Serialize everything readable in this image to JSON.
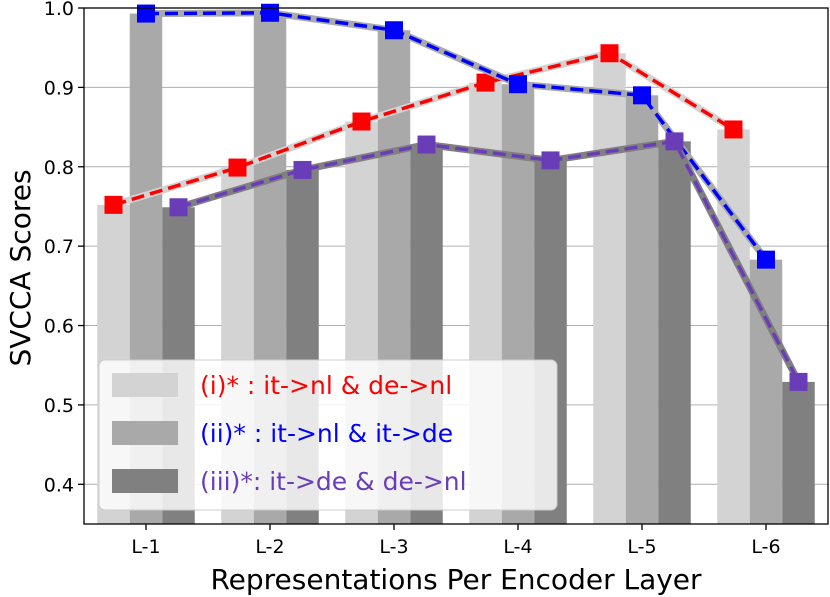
{
  "chart_data": {
    "type": "bar",
    "xlabel": "Representations Per Encoder Layer",
    "ylabel": "SVCCA Scores",
    "categories": [
      "L-1",
      "L-2",
      "L-3",
      "L-4",
      "L-5",
      "L-6"
    ],
    "ylim": [
      0.35,
      1.0
    ],
    "yticks": [
      "0.4",
      "0.5",
      "0.6",
      "0.7",
      "0.8",
      "0.9",
      "1.0"
    ],
    "grid": true,
    "legend_position": "lower-left",
    "series": [
      {
        "name": "(i)* : it->nl & de->nl",
        "values": [
          0.752,
          0.799,
          0.857,
          0.906,
          0.943,
          0.847
        ],
        "bar_color": "#d3d3d3",
        "line_color": "#ff0000"
      },
      {
        "name": "(ii)* : it->nl & it->de",
        "values": [
          0.993,
          0.994,
          0.972,
          0.904,
          0.89,
          0.683
        ],
        "bar_color": "#a9a9a9",
        "line_color": "#0000ff"
      },
      {
        "name": "(iii)*: it->de & de->nl",
        "values": [
          0.749,
          0.796,
          0.828,
          0.808,
          0.832,
          0.529
        ],
        "bar_color": "#808080",
        "line_color": "#6a3db8"
      }
    ]
  }
}
